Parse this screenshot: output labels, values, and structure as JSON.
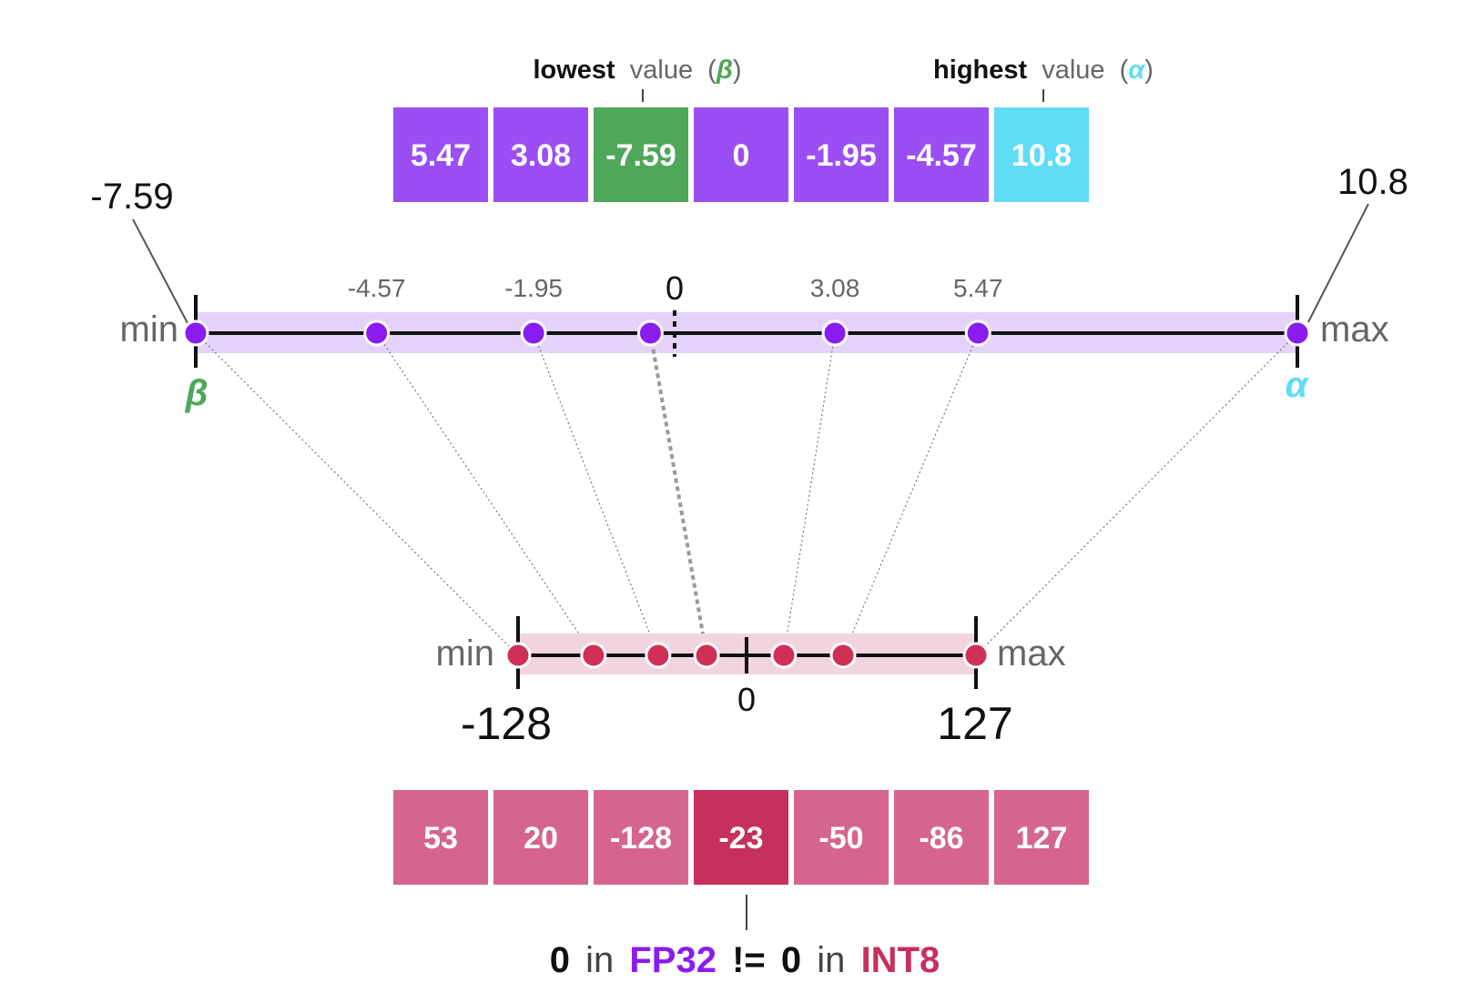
{
  "header": {
    "lowest": {
      "bold": "lowest",
      "rest": "value",
      "open_paren": "(",
      "symbol": "β",
      "close_paren": ")"
    },
    "highest": {
      "bold": "highest",
      "rest": "value",
      "open_paren": "(",
      "symbol": "α",
      "close_paren": ")"
    }
  },
  "fp32_values": [
    "5.47",
    "3.08",
    "-7.59",
    "0",
    "-1.95",
    "-4.57",
    "10.8"
  ],
  "int8_values": [
    "53",
    "20",
    "-128",
    "-23",
    "-50",
    "-86",
    "127"
  ],
  "fp32_line": {
    "min_value": -7.59,
    "max_value": 10.8,
    "min_label": "min",
    "max_label": "max",
    "beta_symbol": "β",
    "alpha_symbol": "α",
    "min_callout": "-7.59",
    "max_callout": "10.8",
    "zero_label": "0",
    "point_values": [
      -7.59,
      -4.57,
      -1.95,
      0,
      3.08,
      5.47,
      10.8
    ],
    "point_labels": [
      "",
      "-4.57",
      "-1.95",
      "0",
      "3.08",
      "5.47",
      ""
    ]
  },
  "int8_line": {
    "min_value": -128,
    "max_value": 127,
    "min_label": "min",
    "max_label": "max",
    "min_tick": "-128",
    "max_tick": "127",
    "zero_label": "0",
    "point_values": [
      -128,
      -86,
      -50,
      -23,
      20,
      53,
      127
    ]
  },
  "caption": {
    "part1": "0",
    "part2": "in",
    "part3": "FP32",
    "part4": "!=",
    "part5": "0",
    "part6": "in",
    "part7": "INT8"
  },
  "colors": {
    "purple": "#9b4ef3",
    "purple_dot": "#8a1cf0",
    "green": "#4fa75a",
    "cyan": "#61dcf6",
    "pink": "#d5658f",
    "dark_pink": "#c6305c",
    "red_dot": "#cf3156",
    "band_purple": "#e5d2fb",
    "band_pink": "#f1d4de"
  }
}
